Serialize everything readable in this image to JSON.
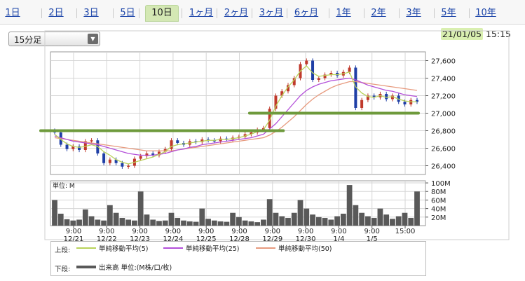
{
  "tabs": [
    {
      "label": "1日",
      "active": false
    },
    {
      "label": "2日",
      "active": false
    },
    {
      "label": "3日",
      "active": false
    },
    {
      "label": "5日",
      "active": false
    },
    {
      "label": "10日",
      "active": true
    },
    {
      "label": "1ヶ月",
      "active": false
    },
    {
      "label": "2ヶ月",
      "active": false
    },
    {
      "label": "3ヶ月",
      "active": false
    },
    {
      "label": "6ヶ月",
      "active": false
    },
    {
      "label": "1年",
      "active": false
    },
    {
      "label": "2年",
      "active": false
    },
    {
      "label": "3年",
      "active": false
    },
    {
      "label": "5年",
      "active": false
    },
    {
      "label": "10年",
      "active": false
    }
  ],
  "interval_select": {
    "value": "15分足",
    "arrow": "▼"
  },
  "timestamp": {
    "date": "21/01/05",
    "time": "15:15"
  },
  "legend": {
    "upper_label": "上段:",
    "lower_label": "下段:",
    "ma5": "単純移動平均(5)",
    "ma25": "単純移動平均(25)",
    "ma50": "単純移動平均(50)",
    "volume": "出来高 単位:(M株/口/枚)"
  },
  "chart_data": [
    {
      "type": "line",
      "title": "",
      "series_style": "candlestick",
      "y_ticks": [
        27600,
        27400,
        27200,
        27000,
        26800,
        26600,
        26400
      ],
      "ylim": [
        26300,
        27700
      ],
      "x_tick_labels": [
        [
          "9:00",
          "12/21"
        ],
        [
          "9:00",
          "12/22"
        ],
        [
          "9:00",
          "12/23"
        ],
        [
          "9:00",
          "12/24"
        ],
        [
          "9:00",
          "12/25"
        ],
        [
          "9:00",
          "12/28"
        ],
        [
          "9:00",
          "12/29"
        ],
        [
          "9:00",
          "12/30"
        ],
        [
          "9:00",
          "1/4"
        ],
        [
          "9:00",
          "1/5"
        ],
        [
          "15:00",
          ""
        ]
      ],
      "price": [
        26780,
        26640,
        26590,
        26620,
        26580,
        26680,
        26690,
        26540,
        26430,
        26470,
        26430,
        26390,
        26400,
        26480,
        26510,
        26540,
        26520,
        26560,
        26590,
        26690,
        26660,
        26640,
        26680,
        26670,
        26700,
        26690,
        26680,
        26710,
        26700,
        26720,
        26730,
        26760,
        26780,
        26810,
        26830,
        27050,
        27200,
        27250,
        27320,
        27400,
        27560,
        27600,
        27380,
        27400,
        27440,
        27460,
        27430,
        27470,
        27520,
        27060,
        27150,
        27200,
        27180,
        27220,
        27160,
        27200,
        27130,
        27100,
        27150,
        27130
      ],
      "ma5": [
        26760,
        26700,
        26650,
        26620,
        26610,
        26620,
        26640,
        26620,
        26560,
        26520,
        26470,
        26440,
        26420,
        26440,
        26460,
        26480,
        26500,
        26530,
        26560,
        26620,
        26640,
        26650,
        26660,
        26670,
        26680,
        26690,
        26690,
        26700,
        26700,
        26710,
        26720,
        26740,
        26760,
        26790,
        26810,
        26920,
        27080,
        27200,
        27300,
        27380,
        27480,
        27540,
        27460,
        27420,
        27430,
        27440,
        27440,
        27450,
        27470,
        27300,
        27230,
        27190,
        27180,
        27200,
        27180,
        27190,
        27160,
        27140,
        27130,
        27130
      ],
      "ma25": [
        26740,
        26720,
        26700,
        26680,
        26670,
        26660,
        26650,
        26640,
        26620,
        26600,
        26580,
        26560,
        26540,
        26530,
        26520,
        26520,
        26520,
        26530,
        26540,
        26560,
        26580,
        26590,
        26610,
        26620,
        26640,
        26650,
        26660,
        26670,
        26680,
        26690,
        26700,
        26710,
        26720,
        26740,
        26760,
        26820,
        26880,
        26960,
        27040,
        27120,
        27200,
        27260,
        27300,
        27330,
        27350,
        27370,
        27380,
        27390,
        27400,
        27380,
        27350,
        27320,
        27300,
        27280,
        27260,
        27250,
        27230,
        27210,
        27200,
        27190
      ],
      "ma50": [
        26720,
        26710,
        26700,
        26690,
        26680,
        26670,
        26660,
        26650,
        26640,
        26630,
        26620,
        26610,
        26600,
        26590,
        26580,
        26570,
        26570,
        26570,
        26570,
        26570,
        26580,
        26590,
        26600,
        26610,
        26620,
        26630,
        26640,
        26650,
        26660,
        26670,
        26680,
        26690,
        26700,
        26710,
        26720,
        26750,
        26790,
        26840,
        26900,
        26960,
        27030,
        27100,
        27160,
        27210,
        27250,
        27290,
        27320,
        27340,
        27360,
        27360,
        27350,
        27340,
        27330,
        27320,
        27310,
        27300,
        27290,
        27280,
        27270,
        27260
      ],
      "support_lines": [
        {
          "value": 26800,
          "from_index": 0,
          "to_index": 37
        },
        {
          "value": 27000,
          "from_index": 34,
          "to_index": 59
        }
      ],
      "colors": {
        "up": "#c0392b",
        "down": "#1f3fa6",
        "ma5": "#b9d35a",
        "ma25": "#b34fd9",
        "ma50": "#e79a7e",
        "support": "#6e9a3c"
      }
    },
    {
      "type": "bar",
      "title": "",
      "label": "単位: M",
      "y_ticks": [
        "100M",
        "80M",
        "60M",
        "40M",
        "20M"
      ],
      "ylim": [
        0,
        105
      ],
      "values": [
        60,
        28,
        15,
        12,
        14,
        38,
        22,
        14,
        12,
        48,
        30,
        18,
        14,
        12,
        80,
        26,
        14,
        11,
        12,
        30,
        18,
        12,
        10,
        9,
        40,
        16,
        12,
        10,
        9,
        30,
        20,
        12,
        10,
        8,
        14,
        62,
        30,
        22,
        18,
        30,
        60,
        40,
        26,
        20,
        18,
        14,
        22,
        28,
        95,
        48,
        30,
        22,
        18,
        40,
        26,
        16,
        22,
        30,
        18,
        80
      ],
      "color": "#595959"
    }
  ]
}
